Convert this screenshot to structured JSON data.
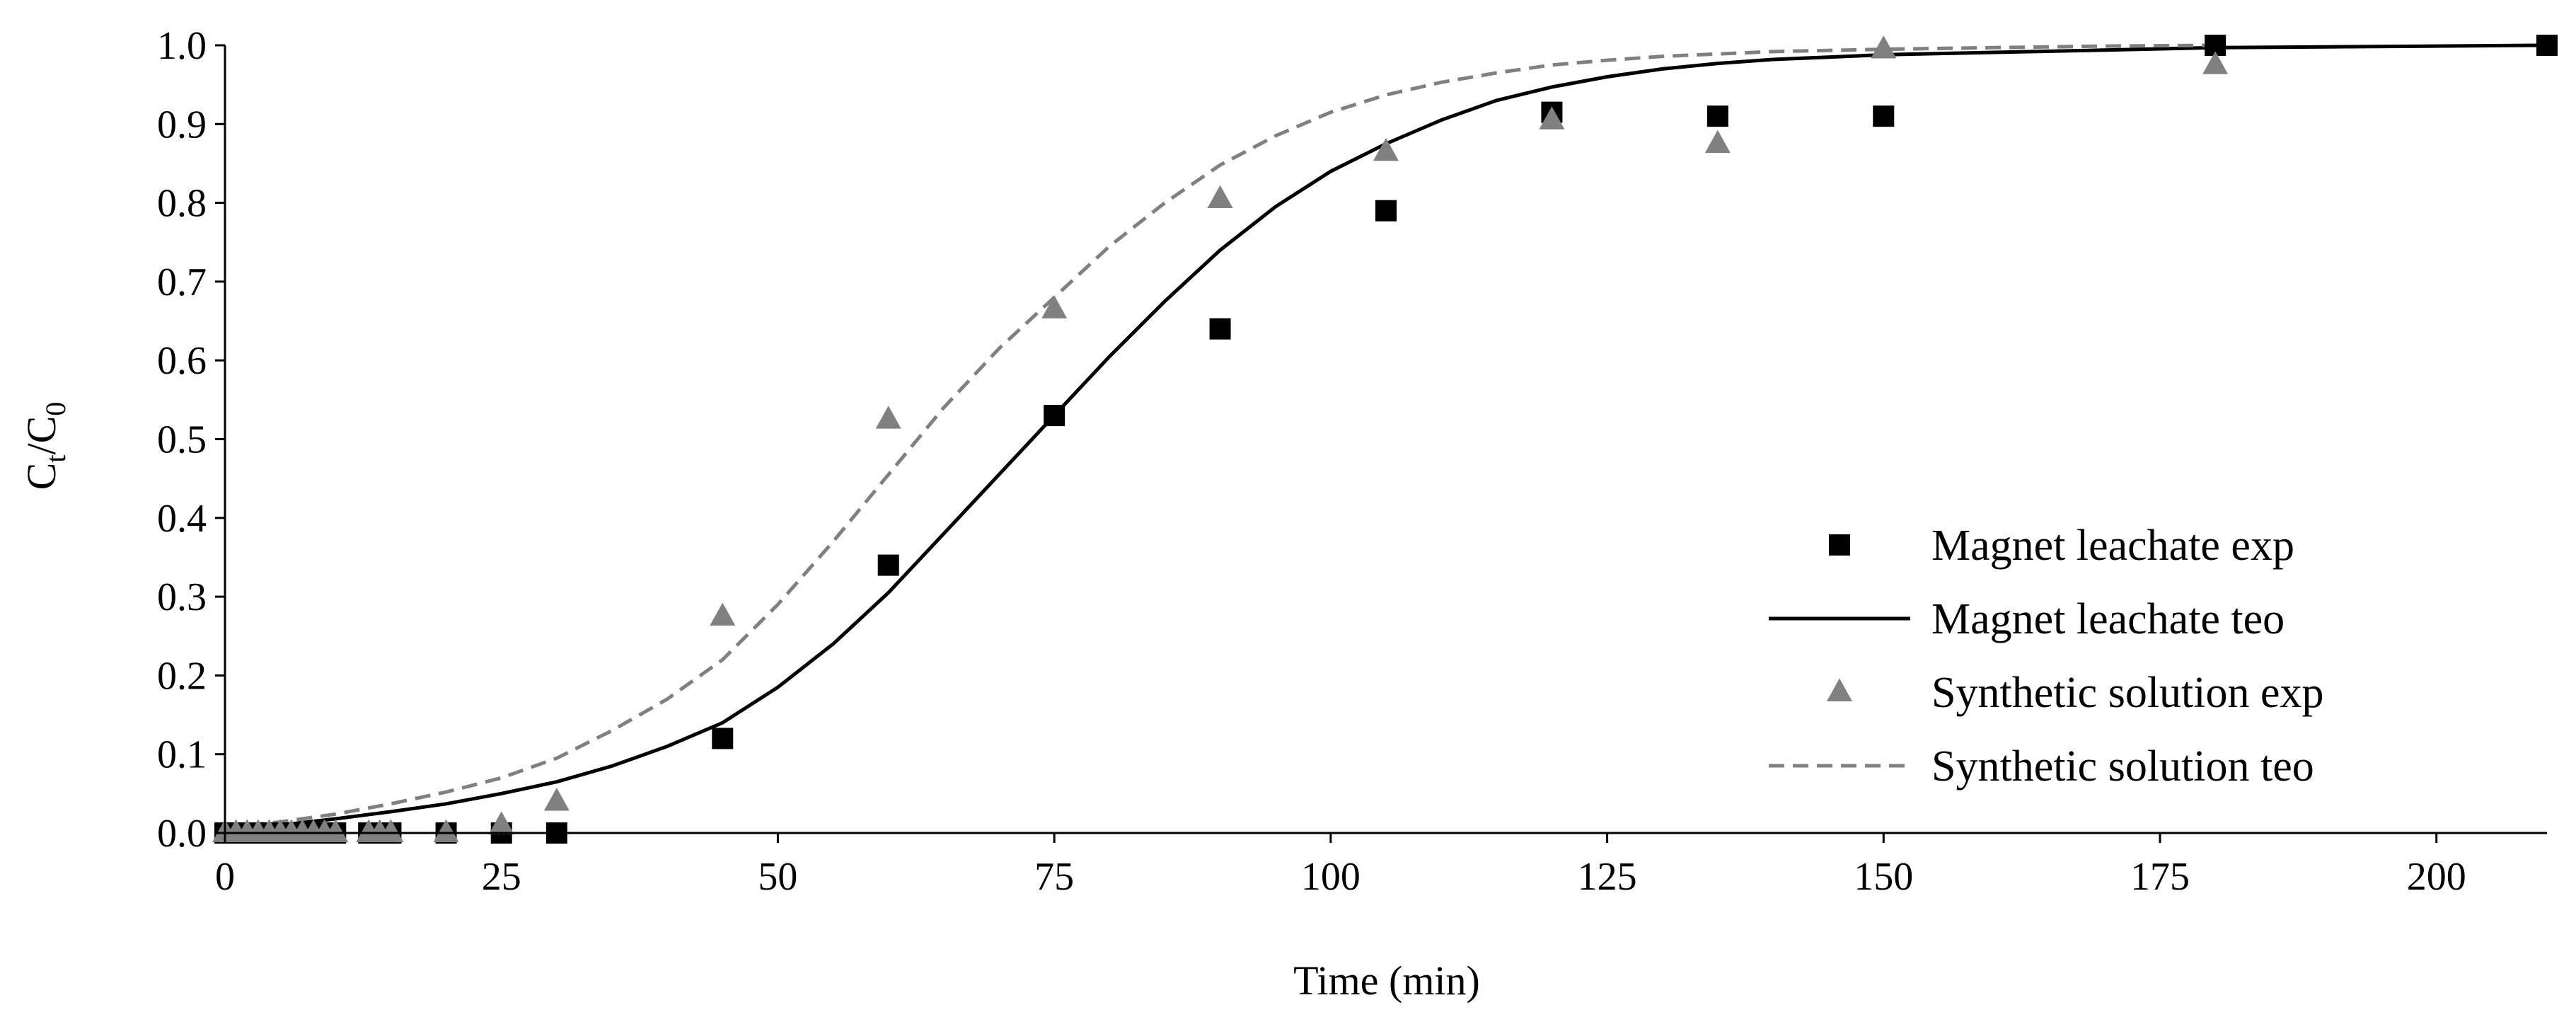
{
  "chart_data": {
    "type": "scatter",
    "title": "",
    "xlabel": "Time (min)",
    "ylabel": {
      "main": "C",
      "sub1": "t",
      "sep": "/C",
      "sub2": "0"
    },
    "xlim": [
      0,
      210
    ],
    "ylim": [
      0,
      1.0
    ],
    "xticks": [
      "0",
      "25",
      "50",
      "75",
      "100",
      "125",
      "150",
      "175",
      "200"
    ],
    "yticks": [
      "0.0",
      "0.1",
      "0.2",
      "0.3",
      "0.4",
      "0.5",
      "0.6",
      "0.7",
      "0.8",
      "0.9",
      "1.0"
    ],
    "legend_position": "right",
    "series": [
      {
        "name": "Magnet leachate exp",
        "kind": "markers",
        "marker": "square",
        "color": "#000000",
        "x": [
          0,
          1,
          2,
          3,
          4,
          5,
          6,
          7,
          8,
          9,
          10,
          13,
          14,
          15,
          20,
          25,
          30,
          45,
          60,
          75,
          90,
          105,
          120,
          135,
          150,
          180,
          210
        ],
        "y": [
          0,
          0,
          0,
          0,
          0,
          0,
          0,
          0,
          0,
          0,
          0,
          0,
          0,
          0,
          0,
          0,
          0,
          0.12,
          0.34,
          0.53,
          0.64,
          0.79,
          0.915,
          0.91,
          0.91,
          1.0,
          1.0
        ]
      },
      {
        "name": "Magnet leachate teo",
        "kind": "line",
        "dash": "solid",
        "color": "#000000",
        "x": [
          0,
          5,
          10,
          15,
          20,
          25,
          30,
          35,
          40,
          45,
          50,
          55,
          60,
          65,
          70,
          75,
          80,
          85,
          90,
          95,
          100,
          105,
          110,
          115,
          120,
          125,
          130,
          135,
          140,
          145,
          150,
          160,
          170,
          180,
          190,
          200,
          210
        ],
        "y": [
          0.005,
          0.01,
          0.018,
          0.027,
          0.037,
          0.05,
          0.065,
          0.085,
          0.11,
          0.14,
          0.185,
          0.24,
          0.305,
          0.38,
          0.455,
          0.53,
          0.605,
          0.675,
          0.74,
          0.795,
          0.84,
          0.875,
          0.905,
          0.93,
          0.947,
          0.96,
          0.97,
          0.977,
          0.982,
          0.985,
          0.988,
          0.991,
          0.994,
          0.997,
          0.998,
          0.999,
          1.0
        ]
      },
      {
        "name": "Synthetic solution exp",
        "kind": "markers",
        "marker": "triangle",
        "color": "#808080",
        "x": [
          0,
          1,
          2,
          3,
          4,
          5,
          6,
          7,
          8,
          9,
          10,
          13,
          14,
          15,
          20,
          25,
          30,
          45,
          60,
          75,
          90,
          105,
          120,
          135,
          150,
          180
        ],
        "y": [
          0,
          0,
          0,
          0,
          0,
          0,
          0,
          0,
          0,
          0,
          0,
          0,
          0,
          0,
          0,
          0.01,
          0.04,
          0.275,
          0.525,
          0.665,
          0.805,
          0.865,
          0.905,
          0.875,
          0.995,
          0.975
        ]
      },
      {
        "name": "Synthetic solution teo",
        "kind": "line",
        "dash": "dashed",
        "color": "#808080",
        "x": [
          0,
          5,
          10,
          15,
          20,
          25,
          30,
          35,
          40,
          45,
          50,
          55,
          60,
          65,
          70,
          75,
          80,
          85,
          90,
          95,
          100,
          105,
          110,
          115,
          120,
          125,
          130,
          140,
          150,
          160,
          170,
          180
        ],
        "y": [
          0.007,
          0.014,
          0.024,
          0.037,
          0.052,
          0.07,
          0.095,
          0.13,
          0.17,
          0.22,
          0.29,
          0.37,
          0.455,
          0.54,
          0.615,
          0.68,
          0.745,
          0.8,
          0.848,
          0.885,
          0.915,
          0.937,
          0.953,
          0.965,
          0.975,
          0.981,
          0.986,
          0.992,
          0.995,
          0.997,
          0.999,
          1.0
        ]
      }
    ]
  }
}
